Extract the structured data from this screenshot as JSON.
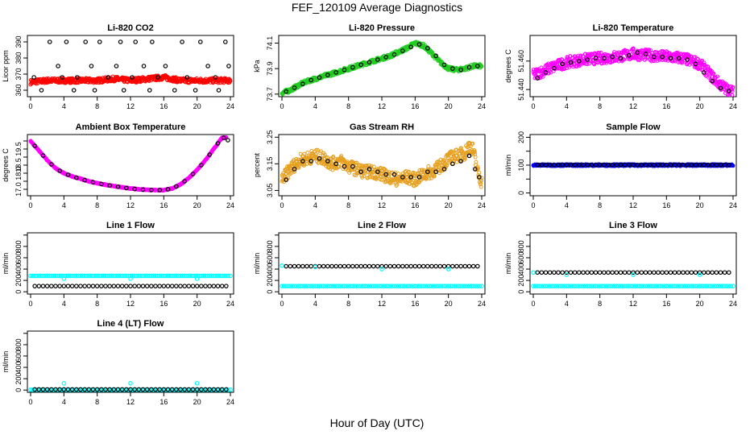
{
  "page": {
    "title": "FEF_120109  Average Diagnostics",
    "xlabel": "Hour of Day (UTC)"
  },
  "colors": {
    "black": "#000000",
    "red": "#ff0000",
    "green": "#22cc22",
    "magenta": "#ff00ff",
    "orange": "#e6a020",
    "blue": "#0000ff",
    "cyan": "#00ffff"
  },
  "chart_data": [
    {
      "type": "scatter",
      "title": "Li-820 CO2",
      "ylabel": "Licor ppm",
      "xlim": [
        0,
        24
      ],
      "ylim": [
        356,
        394
      ],
      "xticks": [
        0,
        4,
        8,
        12,
        16,
        20,
        24
      ],
      "yticks": [
        360,
        370,
        380,
        390
      ],
      "series": [
        {
          "color": "red",
          "band": true,
          "x": [
            0,
            2,
            4,
            6,
            8,
            10,
            12,
            14,
            16,
            18,
            20,
            22,
            24
          ],
          "y": [
            365,
            366,
            366,
            366,
            366,
            367,
            366,
            367,
            368,
            366,
            366,
            366,
            366
          ],
          "spread": 1.5
        },
        {
          "color": "black",
          "x": [
            0.4,
            1.3,
            2.3,
            3.3,
            3.8,
            4.3,
            5.2,
            5.6,
            6.6,
            7.3,
            7.7,
            8.3,
            9.3,
            10.3,
            10.8,
            11.2,
            12.2,
            12.6,
            13.6,
            14.3,
            14.6,
            15.3,
            16.2,
            17.3,
            18.2,
            18.8,
            19.8,
            20.4,
            21.3,
            22.2,
            22.6,
            23.4,
            23.8
          ],
          "y": [
            368,
            360,
            390,
            375,
            368,
            390,
            360,
            368,
            390,
            375,
            360,
            390,
            368,
            375,
            390,
            360,
            368,
            390,
            375,
            360,
            390,
            368,
            375,
            360,
            390,
            368,
            360,
            390,
            375,
            368,
            360,
            390,
            375
          ]
        }
      ]
    },
    {
      "type": "scatter",
      "title": "Li-820 Pressure",
      "ylabel": "kPa",
      "xlim": [
        0,
        24
      ],
      "ylim": [
        73.68,
        74.16
      ],
      "xticks": [
        0,
        4,
        8,
        12,
        16,
        20,
        24
      ],
      "yticks": [
        73.7,
        73.9,
        74.1
      ],
      "series": [
        {
          "color": "green",
          "band": true,
          "x": [
            0,
            1,
            2,
            3,
            4,
            5,
            6,
            7,
            8,
            9,
            10,
            11,
            12,
            13,
            14,
            15,
            16,
            17,
            18,
            19,
            20,
            21,
            22,
            23,
            24
          ],
          "y": [
            73.71,
            73.73,
            73.77,
            73.8,
            73.82,
            73.84,
            73.86,
            73.88,
            73.9,
            73.92,
            73.94,
            73.96,
            73.98,
            74.0,
            74.03,
            74.06,
            74.1,
            74.08,
            74.02,
            73.95,
            73.9,
            73.89,
            73.9,
            73.92,
            73.92
          ],
          "spread": 0.015
        },
        {
          "color": "black",
          "x": [
            0.5,
            1.5,
            2.5,
            3.5,
            4.5,
            5.5,
            6.5,
            7.5,
            8.5,
            9.5,
            10.5,
            11.5,
            12.5,
            13.5,
            14.5,
            15.5,
            16.5,
            17.5,
            18.5,
            19.5,
            20.5,
            21.5,
            22.5,
            23.5
          ],
          "y": [
            73.72,
            73.75,
            73.78,
            73.81,
            73.83,
            73.85,
            73.87,
            73.89,
            73.91,
            73.93,
            73.95,
            73.97,
            73.99,
            74.01,
            74.04,
            74.07,
            74.09,
            74.06,
            74.0,
            73.93,
            73.9,
            73.89,
            73.91,
            73.92
          ]
        }
      ]
    },
    {
      "type": "scatter",
      "title": "Li-820 Temperature",
      "ylabel": "degrees C",
      "xlim": [
        0,
        24
      ],
      "ylim": [
        51.435,
        51.478
      ],
      "xticks": [
        0,
        4,
        8,
        12,
        16,
        20,
        24
      ],
      "yticks": [
        51.44,
        51.46
      ],
      "ytick_labels": [
        "51.440",
        "51.460"
      ],
      "series": [
        {
          "color": "magenta",
          "band": true,
          "x": [
            0,
            2,
            4,
            6,
            8,
            10,
            12,
            14,
            16,
            18,
            20,
            21,
            22,
            23,
            24
          ],
          "y": [
            51.45,
            51.455,
            51.459,
            51.461,
            51.462,
            51.463,
            51.465,
            51.464,
            51.463,
            51.462,
            51.458,
            51.452,
            51.446,
            51.441,
            51.438
          ],
          "spread": 0.004
        },
        {
          "color": "black",
          "x": [
            0.5,
            1.5,
            2.5,
            3.5,
            4.5,
            5.5,
            6.5,
            7.5,
            8.5,
            9.5,
            10.5,
            11.5,
            12.5,
            13.5,
            14.5,
            15.5,
            16.5,
            17.5,
            18.5,
            19.5,
            20.5,
            21.5,
            22.5,
            23.5
          ],
          "y": [
            51.448,
            51.452,
            51.455,
            51.458,
            51.459,
            51.46,
            51.461,
            51.462,
            51.462,
            51.463,
            51.462,
            51.464,
            51.466,
            51.465,
            51.463,
            51.463,
            51.462,
            51.462,
            51.461,
            51.458,
            51.452,
            51.446,
            51.441,
            51.439
          ]
        }
      ]
    },
    {
      "type": "scatter",
      "title": "Ambient Box Temperature",
      "ylabel": "degrees C",
      "xlim": [
        0,
        24
      ],
      "ylim": [
        16.6,
        20.4
      ],
      "xticks": [
        0,
        4,
        8,
        12,
        16,
        20,
        24
      ],
      "yticks": [
        17.0,
        17.5,
        18.0,
        18.5,
        19.0,
        19.5,
        20.0
      ],
      "ytick_labels": [
        "17.0",
        "",
        "18.0",
        "18.5",
        "",
        "19.5",
        ""
      ],
      "series": [
        {
          "color": "magenta",
          "band": true,
          "x": [
            0,
            1,
            2,
            3,
            4,
            5,
            6,
            7,
            8,
            9,
            10,
            11,
            12,
            13,
            14,
            15,
            16,
            17,
            18,
            19,
            20,
            21,
            22,
            23,
            23.5
          ],
          "y": [
            20.0,
            19.4,
            18.8,
            18.3,
            18.0,
            17.8,
            17.65,
            17.5,
            17.38,
            17.28,
            17.2,
            17.12,
            17.05,
            17.0,
            16.97,
            16.95,
            16.95,
            17.05,
            17.3,
            17.7,
            18.2,
            18.8,
            19.5,
            20.2,
            20.2
          ],
          "spread": 0.03
        },
        {
          "color": "black",
          "x": [
            0.5,
            1.5,
            2.5,
            3.5,
            4.5,
            5.5,
            6.5,
            7.5,
            8.5,
            9.5,
            10.5,
            11.5,
            12.5,
            13.5,
            14.5,
            15.5,
            16.5,
            17.5,
            18.5,
            19.5,
            20.5,
            21.5,
            22.5,
            23.2,
            23.7
          ],
          "y": [
            19.7,
            19.1,
            18.55,
            18.15,
            17.9,
            17.72,
            17.57,
            17.44,
            17.33,
            17.24,
            17.16,
            17.08,
            17.02,
            16.98,
            16.96,
            16.95,
            17.0,
            17.18,
            17.5,
            17.95,
            18.5,
            19.15,
            19.85,
            20.2,
            20.05
          ]
        }
      ]
    },
    {
      "type": "scatter",
      "title": "Gas Stream RH",
      "ylabel": "percent",
      "xlim": [
        0,
        24
      ],
      "ylim": [
        3.03,
        3.26
      ],
      "xticks": [
        0,
        4,
        8,
        12,
        16,
        20,
        24
      ],
      "yticks": [
        3.05,
        3.15,
        3.25
      ],
      "series": [
        {
          "color": "orange",
          "band": true,
          "x": [
            0,
            1,
            2,
            3,
            4,
            5,
            6,
            7,
            8,
            9,
            10,
            11,
            12,
            13,
            14,
            15,
            16,
            17,
            18,
            19,
            20,
            21,
            22,
            22.5,
            23,
            23.5,
            24
          ],
          "y": [
            3.09,
            3.13,
            3.16,
            3.17,
            3.18,
            3.17,
            3.15,
            3.16,
            3.14,
            3.13,
            3.12,
            3.12,
            3.11,
            3.1,
            3.09,
            3.1,
            3.09,
            3.11,
            3.12,
            3.14,
            3.17,
            3.18,
            3.19,
            3.22,
            3.2,
            3.12,
            3.08
          ],
          "spread": 0.025
        },
        {
          "color": "black",
          "x": [
            0.5,
            1.5,
            2.5,
            3.5,
            4.5,
            5.5,
            6.5,
            7.5,
            8.5,
            9.5,
            10.5,
            11.5,
            12.5,
            13.5,
            14.5,
            15.5,
            16.5,
            17.5,
            18.5,
            19.5,
            20.5,
            21.5,
            22.5,
            23.2,
            23.7
          ],
          "y": [
            3.09,
            3.13,
            3.16,
            3.16,
            3.17,
            3.16,
            3.15,
            3.14,
            3.14,
            3.12,
            3.13,
            3.12,
            3.11,
            3.11,
            3.1,
            3.1,
            3.1,
            3.12,
            3.12,
            3.13,
            3.15,
            3.16,
            3.18,
            3.13,
            3.1
          ]
        }
      ]
    },
    {
      "type": "scatter",
      "title": "Sample Flow",
      "ylabel": "ml/min",
      "xlim": [
        0,
        24
      ],
      "ylim": [
        -10,
        210
      ],
      "xticks": [
        0,
        4,
        8,
        12,
        16,
        20,
        24
      ],
      "yticks": [
        0,
        50,
        100,
        150,
        200
      ],
      "ytick_labels": [
        "0",
        "",
        "100",
        "",
        "200"
      ],
      "series": [
        {
          "color": "blue",
          "band": true,
          "x": [
            0,
            24
          ],
          "y": [
            100,
            100
          ],
          "spread": 3
        },
        {
          "color": "black",
          "every": 0.5,
          "x0": 0.5,
          "x1": 23.5,
          "value": 101
        }
      ]
    },
    {
      "type": "scatter",
      "title": "Line 1 Flow",
      "ylabel": "ml/min",
      "xlim": [
        0,
        24
      ],
      "ylim": [
        -40,
        1040
      ],
      "xticks": [
        0,
        4,
        8,
        12,
        16,
        20,
        24
      ],
      "yticks": [
        0,
        200,
        400,
        600,
        800,
        1000
      ],
      "ytick_labels": [
        "0",
        "200",
        "400",
        "600",
        "800",
        ""
      ],
      "series": [
        {
          "color": "cyan",
          "every": 0.25,
          "x0": 0,
          "x1": 24,
          "value": 280
        },
        {
          "color": "black",
          "every": 0.5,
          "x0": 0.5,
          "x1": 23.5,
          "value": 100
        },
        {
          "color": "cyan",
          "x": [
            4,
            12,
            20
          ],
          "y": [
            230,
            230,
            230
          ]
        }
      ]
    },
    {
      "type": "scatter",
      "title": "Line 2 Flow",
      "ylabel": "ml/min",
      "xlim": [
        0,
        24
      ],
      "ylim": [
        -40,
        1040
      ],
      "xticks": [
        0,
        4,
        8,
        12,
        16,
        20,
        24
      ],
      "yticks": [
        0,
        200,
        400,
        600,
        800,
        1000
      ],
      "ytick_labels": [
        "0",
        "200",
        "400",
        "600",
        "800",
        ""
      ],
      "series": [
        {
          "color": "cyan",
          "every": 0.25,
          "x0": 0,
          "x1": 24,
          "value": 100
        },
        {
          "color": "black",
          "every": 0.5,
          "x0": 0.5,
          "x1": 23.5,
          "value": 450
        },
        {
          "color": "cyan",
          "x": [
            0,
            4,
            12,
            20
          ],
          "y": [
            460,
            440,
            400,
            400
          ]
        }
      ]
    },
    {
      "type": "scatter",
      "title": "Line 3 Flow",
      "ylabel": "ml/min",
      "xlim": [
        0,
        24
      ],
      "ylim": [
        -40,
        1040
      ],
      "xticks": [
        0,
        4,
        8,
        12,
        16,
        20,
        24
      ],
      "yticks": [
        0,
        200,
        400,
        600,
        800,
        1000
      ],
      "ytick_labels": [
        "0",
        "200",
        "400",
        "600",
        "800",
        ""
      ],
      "series": [
        {
          "color": "cyan",
          "every": 0.25,
          "x0": 0,
          "x1": 24,
          "value": 100
        },
        {
          "color": "black",
          "every": 0.5,
          "x0": 0.5,
          "x1": 23.5,
          "value": 340
        },
        {
          "color": "cyan",
          "x": [
            0,
            4,
            12,
            20
          ],
          "y": [
            340,
            300,
            300,
            300
          ]
        }
      ]
    },
    {
      "type": "scatter",
      "title": "Line 4 (LT) Flow",
      "ylabel": "ml/min",
      "xlim": [
        0,
        24
      ],
      "ylim": [
        -40,
        1040
      ],
      "xticks": [
        0,
        4,
        8,
        12,
        16,
        20,
        24
      ],
      "yticks": [
        0,
        200,
        400,
        600,
        800,
        1000
      ],
      "ytick_labels": [
        "0",
        "200",
        "400",
        "600",
        "800",
        ""
      ],
      "series": [
        {
          "color": "cyan",
          "every": 0.25,
          "x0": 0,
          "x1": 24,
          "value": 5
        },
        {
          "color": "black",
          "every": 0.5,
          "x0": 0.5,
          "x1": 23.5,
          "value": 10
        },
        {
          "color": "cyan",
          "x": [
            4,
            12,
            20
          ],
          "y": [
            120,
            120,
            120
          ]
        }
      ]
    }
  ]
}
